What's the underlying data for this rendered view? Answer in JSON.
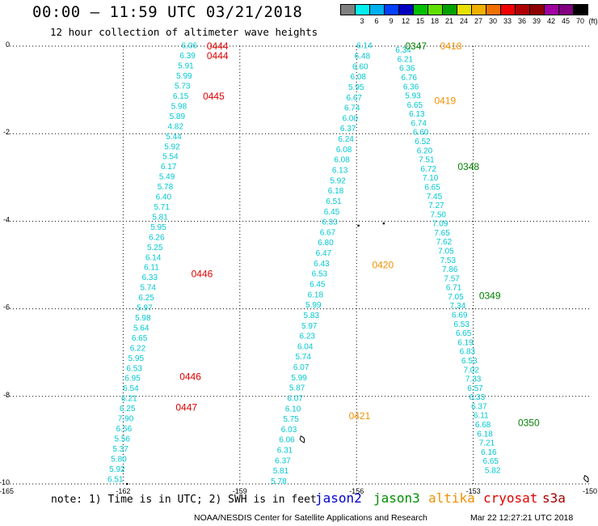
{
  "header": {
    "title": "00:00 – 11:59 UTC 03/21/2018",
    "subtitle": "12 hour collection of altimeter wave heights"
  },
  "colorbar": {
    "unit_label": "(ft)",
    "labels": [
      "3",
      "6",
      "9",
      "12",
      "15",
      "18",
      "21",
      "24",
      "27",
      "30",
      "33",
      "36",
      "39",
      "42",
      "45",
      "70"
    ],
    "colors": [
      "#808080",
      "#00f0f0",
      "#00b0f0",
      "#0040ff",
      "#0000c0",
      "#00c000",
      "#60e000",
      "#00a000",
      "#e8e000",
      "#f0b000",
      "#f07000",
      "#f00000",
      "#b00000",
      "#900000",
      "#a000a0",
      "#800080",
      "#000000"
    ]
  },
  "map": {
    "x_ticks": [
      "-165",
      "-162",
      "-159",
      "-156",
      "-153",
      "-150"
    ],
    "y_ticks": [
      "0",
      "-2",
      "-4",
      "-6",
      "-8",
      "-10"
    ],
    "tracks": [
      {
        "sat": "jason3",
        "color": "#00c8d2",
        "start": [
          -160.3,
          -0.05
        ],
        "end": [
          -162.2,
          -9.95
        ],
        "values": [
          "6.06",
          "6.39",
          "5.91",
          "5.99",
          "5.73",
          "6.15",
          "5.98",
          "5.89",
          "4.82",
          "5.44",
          "5.92",
          "5.54",
          "6.17",
          "5.49",
          "5.78",
          "6.40",
          "5.71",
          "5.81",
          "5.95",
          "6.26",
          "5.25",
          "6.14",
          "6.11",
          "6.33",
          "5.74",
          "6.25",
          "5.97",
          "5.98",
          "5.64",
          "6.65",
          "6.22",
          "5.95",
          "6.53",
          "6.95",
          "6.54",
          "6.21",
          "6.25",
          "7.90",
          "6.56",
          "5.56",
          "5.37",
          "5.80",
          "5.92",
          "6.51"
        ]
      },
      {
        "sat": "jason3",
        "color": "#00c8d2",
        "start": [
          -155.8,
          -0.05
        ],
        "end": [
          -158.0,
          -10.0
        ],
        "values": [
          "6.14",
          "6.48",
          "6.60",
          "6.08",
          "5.95",
          "6.67",
          "6.74",
          "6.00",
          "6.37",
          "6.24",
          "6.08",
          "6.08",
          "6.13",
          "5.92",
          "6.18",
          "6.51",
          "6.45",
          "6.33",
          "6.67",
          "6.80",
          "6.47",
          "6.43",
          "6.53",
          "6.45",
          "6.18",
          "5.99",
          "5.83",
          "5.97",
          "6.23",
          "6.04",
          "5.74",
          "6.07",
          "5.99",
          "5.87",
          "6.07",
          "6.10",
          "5.75",
          "6.03",
          "6.06",
          "6.31",
          "6.37",
          "5.81",
          "5.78"
        ]
      },
      {
        "sat": "jason3",
        "color": "#00c8d2",
        "start": [
          -154.8,
          -0.15
        ],
        "end": [
          -152.5,
          -9.75
        ],
        "values": [
          "6.34",
          "6.21",
          "6.36",
          "6.76",
          "6.36",
          "5.93",
          "6.65",
          "6.13",
          "6.74",
          "6.60",
          "6.52",
          "6.20",
          "7.51",
          "6.72",
          "7.10",
          "6.65",
          "7.45",
          "7.27",
          "7.50",
          "7.09",
          "7.65",
          "7.62",
          "7.05",
          "7.53",
          "7.86",
          "7.57",
          "6.71",
          "7.05",
          "7.34",
          "6.69",
          "6.53",
          "6.65",
          "6.19",
          "6.83",
          "6.53",
          "7.02",
          "7.33",
          "6.57",
          "6.33",
          "6.37",
          "6.11",
          "6.68",
          "6.18",
          "7.21",
          "6.16",
          "6.65",
          "5.82"
        ]
      }
    ],
    "time_labels": [
      {
        "text": "0444",
        "lon": -159.85,
        "lat": 0.0,
        "color": "#e00000"
      },
      {
        "text": "0444",
        "lon": -159.85,
        "lat": -0.22,
        "color": "#e00000"
      },
      {
        "text": "0445",
        "lon": -159.95,
        "lat": -1.15,
        "color": "#e00000"
      },
      {
        "text": "0446",
        "lon": -160.25,
        "lat": -5.2,
        "color": "#e00000"
      },
      {
        "text": "0446",
        "lon": -160.55,
        "lat": -7.55,
        "color": "#e00000"
      },
      {
        "text": "0447",
        "lon": -160.65,
        "lat": -8.25,
        "color": "#e00000"
      },
      {
        "text": "0347",
        "lon": -154.75,
        "lat": 0.0,
        "color": "#008000"
      },
      {
        "text": "0348",
        "lon": -153.4,
        "lat": -2.75,
        "color": "#008000"
      },
      {
        "text": "0349",
        "lon": -152.85,
        "lat": -5.7,
        "color": "#008000"
      },
      {
        "text": "0350",
        "lon": -151.85,
        "lat": -8.6,
        "color": "#008000"
      },
      {
        "text": "0418",
        "lon": -153.85,
        "lat": 0.0,
        "color": "#f09000"
      },
      {
        "text": "0419",
        "lon": -154.0,
        "lat": -1.25,
        "color": "#f09000"
      },
      {
        "text": "0420",
        "lon": -155.6,
        "lat": -5.0,
        "color": "#f09000"
      },
      {
        "text": "0421",
        "lon": -156.2,
        "lat": -8.45,
        "color": "#f09000"
      }
    ],
    "islands": [
      {
        "lon": -155.95,
        "lat": -4.1,
        "shape": "dot"
      },
      {
        "lon": -155.3,
        "lat": -4.05,
        "shape": "dot"
      },
      {
        "lon": -157.35,
        "lat": -9.0,
        "shape": "atoll"
      },
      {
        "lon": -150.05,
        "lat": -9.9,
        "shape": "atoll"
      },
      {
        "lon": -161.9,
        "lat": -10.0,
        "shape": "dot"
      }
    ]
  },
  "footer": {
    "note": "note: 1) Time is in UTC; 2) SWH is in feet",
    "satellites": [
      {
        "name": "jason2",
        "color": "#0000d0"
      },
      {
        "name": "jason3",
        "color": "#009000"
      },
      {
        "name": "altika",
        "color": "#f09000"
      },
      {
        "name": "cryosat",
        "color": "#e00000"
      },
      {
        "name": "s3a",
        "color": "#a00000"
      }
    ],
    "credit": "NOAA/NESDIS Center for Satellite Applications and Research",
    "timestamp": "Mar 22 12:27:21 UTC 2018"
  }
}
